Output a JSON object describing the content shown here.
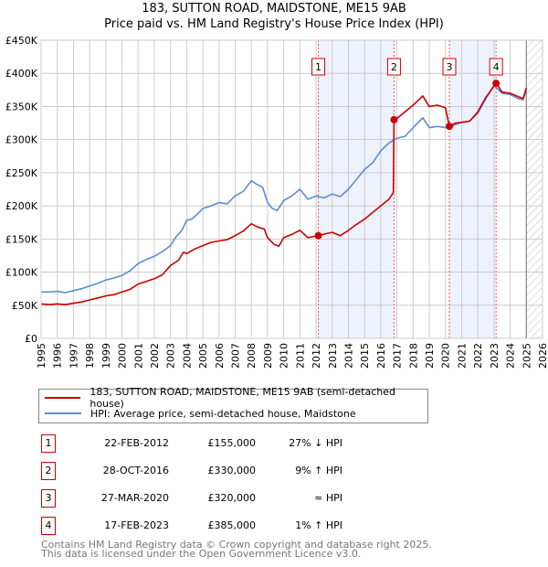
{
  "title_line1": "183, SUTTON ROAD, MAIDSTONE, ME15 9AB",
  "title_line2": "Price paid vs. HM Land Registry's House Price Index (HPI)",
  "colors": {
    "property": "#cc0000",
    "hpi": "#5b8dd0",
    "shade": "#eef2fc",
    "grid": "#cccccc"
  },
  "chart_data": {
    "type": "line",
    "title": "183, SUTTON ROAD, MAIDSTONE, ME15 9AB - Price paid vs. HM Land Registry's House Price Index (HPI)",
    "xlim": [
      1995,
      2026
    ],
    "ylim": [
      0,
      450000
    ],
    "y_ticks": [
      0,
      50000,
      100000,
      150000,
      200000,
      250000,
      300000,
      350000,
      400000,
      450000
    ],
    "y_tick_labels": [
      "£0",
      "£50K",
      "£100K",
      "£150K",
      "£200K",
      "£250K",
      "£300K",
      "£350K",
      "£400K",
      "£450K"
    ],
    "x_ticks": [
      "1995",
      "1996",
      "1997",
      "1998",
      "1999",
      "2000",
      "2001",
      "2002",
      "2003",
      "2004",
      "2005",
      "2006",
      "2007",
      "2008",
      "2009",
      "2010",
      "2011",
      "2012",
      "2013",
      "2014",
      "2015",
      "2016",
      "2017",
      "2018",
      "2019",
      "2020",
      "2021",
      "2022",
      "2023",
      "2024",
      "2025",
      "2026"
    ],
    "grid": true,
    "forecast_hatch_from": 2025.0,
    "shaded_periods": [
      [
        2012.14,
        2016.82
      ],
      [
        2020.24,
        2023.13
      ]
    ],
    "series": [
      {
        "name": "183, SUTTON ROAD, MAIDSTONE, ME15 9AB (semi-detached house)",
        "color": "#cc0000",
        "points": [
          [
            1995,
            52
          ],
          [
            1995.5,
            51
          ],
          [
            1996,
            52
          ],
          [
            1996.5,
            51
          ],
          [
            1997,
            53
          ],
          [
            1997.5,
            55
          ],
          [
            1998,
            58
          ],
          [
            1998.5,
            61
          ],
          [
            1999,
            64
          ],
          [
            1999.5,
            66
          ],
          [
            2000,
            70
          ],
          [
            2000.5,
            74
          ],
          [
            2001,
            82
          ],
          [
            2001.5,
            86
          ],
          [
            2002,
            90
          ],
          [
            2002.5,
            96
          ],
          [
            2003,
            110
          ],
          [
            2003.5,
            118
          ],
          [
            2003.8,
            130
          ],
          [
            2004,
            128
          ],
          [
            2004.5,
            135
          ],
          [
            2005,
            140
          ],
          [
            2005.5,
            145
          ],
          [
            2006,
            147
          ],
          [
            2006.5,
            149
          ],
          [
            2007,
            155
          ],
          [
            2007.5,
            162
          ],
          [
            2008,
            173
          ],
          [
            2008.4,
            168
          ],
          [
            2008.8,
            165
          ],
          [
            2009,
            152
          ],
          [
            2009.4,
            142
          ],
          [
            2009.7,
            139
          ],
          [
            2010,
            152
          ],
          [
            2010.5,
            157
          ],
          [
            2011,
            163
          ],
          [
            2011.5,
            152
          ],
          [
            2012.14,
            155
          ],
          [
            2012.6,
            158
          ],
          [
            2013,
            160
          ],
          [
            2013.5,
            155
          ],
          [
            2014,
            163
          ],
          [
            2014.5,
            172
          ],
          [
            2015,
            180
          ],
          [
            2015.5,
            190
          ],
          [
            2016,
            200
          ],
          [
            2016.5,
            210
          ],
          [
            2016.78,
            220
          ],
          [
            2016.82,
            330
          ],
          [
            2017,
            332
          ],
          [
            2017.5,
            342
          ],
          [
            2018,
            352
          ],
          [
            2018.6,
            366
          ],
          [
            2019,
            350
          ],
          [
            2019.5,
            352
          ],
          [
            2020,
            348
          ],
          [
            2020.24,
            320
          ],
          [
            2020.6,
            325
          ],
          [
            2021,
            326
          ],
          [
            2021.5,
            328
          ],
          [
            2022,
            342
          ],
          [
            2022.5,
            364
          ],
          [
            2023.13,
            385
          ],
          [
            2023.5,
            372
          ],
          [
            2024,
            370
          ],
          [
            2024.5,
            365
          ],
          [
            2024.8,
            362
          ],
          [
            2025,
            378
          ]
        ]
      },
      {
        "name": "HPI: Average price, semi-detached house, Maidstone",
        "color": "#5b8dd0",
        "points": [
          [
            1995,
            70
          ],
          [
            1995.5,
            70
          ],
          [
            1996,
            71
          ],
          [
            1996.5,
            69
          ],
          [
            1997,
            72
          ],
          [
            1997.5,
            75
          ],
          [
            1998,
            79
          ],
          [
            1998.5,
            83
          ],
          [
            1999,
            88
          ],
          [
            1999.5,
            91
          ],
          [
            2000,
            95
          ],
          [
            2000.5,
            102
          ],
          [
            2001,
            113
          ],
          [
            2001.5,
            119
          ],
          [
            2002,
            124
          ],
          [
            2002.5,
            131
          ],
          [
            2003,
            140
          ],
          [
            2003.3,
            152
          ],
          [
            2003.7,
            163
          ],
          [
            2004,
            178
          ],
          [
            2004.3,
            180
          ],
          [
            2004.6,
            186
          ],
          [
            2005,
            196
          ],
          [
            2005.5,
            200
          ],
          [
            2006,
            205
          ],
          [
            2006.5,
            203
          ],
          [
            2007,
            215
          ],
          [
            2007.5,
            222
          ],
          [
            2008,
            238
          ],
          [
            2008.3,
            233
          ],
          [
            2008.7,
            228
          ],
          [
            2009,
            205
          ],
          [
            2009.3,
            196
          ],
          [
            2009.6,
            193
          ],
          [
            2010,
            208
          ],
          [
            2010.5,
            215
          ],
          [
            2011,
            225
          ],
          [
            2011.5,
            210
          ],
          [
            2012,
            215
          ],
          [
            2012.5,
            212
          ],
          [
            2013,
            218
          ],
          [
            2013.5,
            214
          ],
          [
            2014,
            225
          ],
          [
            2014.5,
            240
          ],
          [
            2015,
            255
          ],
          [
            2015.5,
            265
          ],
          [
            2016,
            283
          ],
          [
            2016.5,
            295
          ],
          [
            2017,
            302
          ],
          [
            2017.5,
            305
          ],
          [
            2018,
            318
          ],
          [
            2018.6,
            333
          ],
          [
            2019,
            318
          ],
          [
            2019.5,
            320
          ],
          [
            2020,
            318
          ],
          [
            2020.3,
            320
          ],
          [
            2021,
            326
          ],
          [
            2021.5,
            328
          ],
          [
            2022,
            340
          ],
          [
            2022.5,
            362
          ],
          [
            2023,
            382
          ],
          [
            2023.5,
            370
          ],
          [
            2024,
            368
          ],
          [
            2024.5,
            362
          ],
          [
            2024.8,
            360
          ],
          [
            2025,
            375
          ]
        ]
      }
    ],
    "sales": [
      {
        "label": "1",
        "x": 2012.14,
        "y": 155
      },
      {
        "label": "2",
        "x": 2016.82,
        "y": 330
      },
      {
        "label": "3",
        "x": 2020.24,
        "y": 320
      },
      {
        "label": "4",
        "x": 2023.13,
        "y": 385
      }
    ]
  },
  "legend": {
    "property": "183, SUTTON ROAD, MAIDSTONE, ME15 9AB (semi-detached house)",
    "hpi": "HPI: Average price, semi-detached house, Maidstone"
  },
  "transactions": [
    {
      "num": "1",
      "date": "22-FEB-2012",
      "price": "£155,000",
      "hpi": "27% ↓ HPI"
    },
    {
      "num": "2",
      "date": "28-OCT-2016",
      "price": "£330,000",
      "hpi": "9% ↑ HPI"
    },
    {
      "num": "3",
      "date": "27-MAR-2020",
      "price": "£320,000",
      "hpi": "≈ HPI"
    },
    {
      "num": "4",
      "date": "17-FEB-2023",
      "price": "£385,000",
      "hpi": "1% ↑ HPI"
    }
  ],
  "footer": {
    "line1": "Contains HM Land Registry data © Crown copyright and database right 2025.",
    "line2": "This data is licensed under the Open Government Licence v3.0."
  }
}
